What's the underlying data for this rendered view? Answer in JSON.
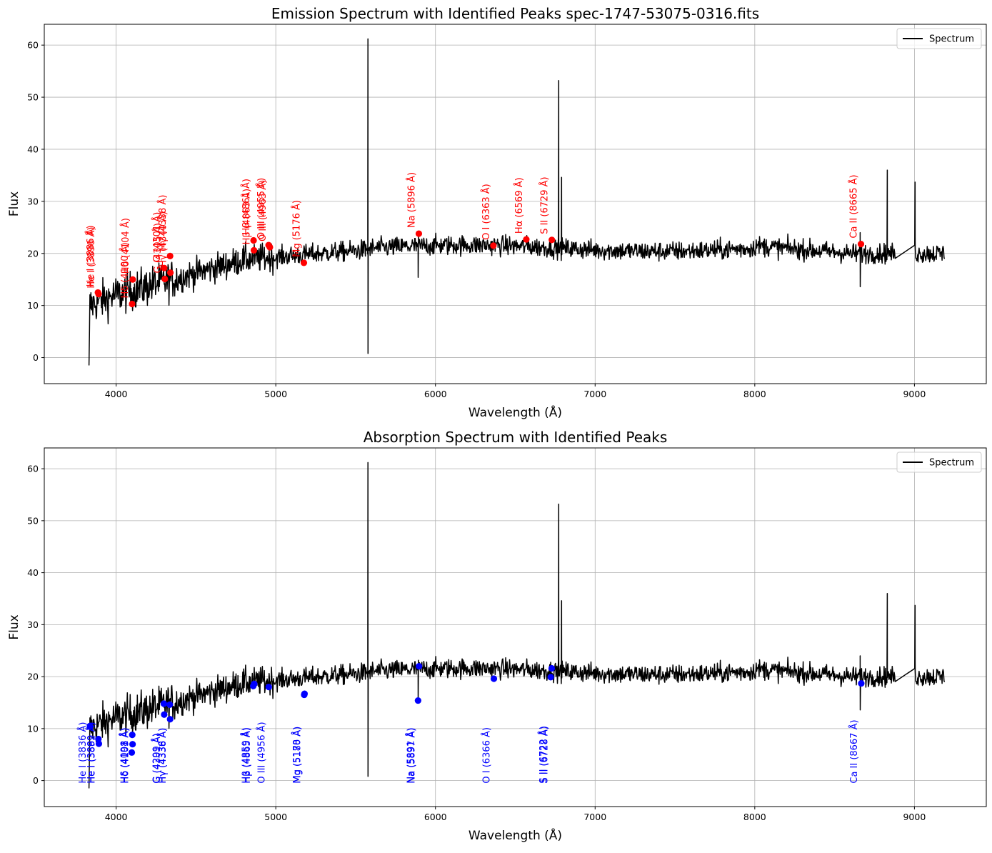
{
  "chart_data": [
    {
      "type": "line",
      "title": "Emission Spectrum with Identified Peaks spec-1747-53075-0316.fits",
      "xlabel": "Wavelength (Å)",
      "ylabel": "Flux",
      "xlim": [
        3550,
        9450
      ],
      "ylim": [
        -5,
        64
      ],
      "xticks": [
        4000,
        5000,
        6000,
        7000,
        8000,
        9000
      ],
      "yticks": [
        0,
        10,
        20,
        30,
        40,
        50,
        60
      ],
      "grid": true,
      "legend": {
        "position": "top-right",
        "entries": [
          "Spectrum"
        ]
      },
      "series_color": "#000000",
      "marker_color": "#ff0000",
      "markers": [
        {
          "x": 3886,
          "y": 12.5,
          "label": "He I (3886 Å)"
        },
        {
          "x": 3890,
          "y": 12.2,
          "label": "He I (3890 Å)"
        },
        {
          "x": 4100,
          "y": 10.3,
          "label": "Hδ (4100 Å)"
        },
        {
          "x": 4104,
          "y": 15.0,
          "label": "Hδ (4104 Å)"
        },
        {
          "x": 4301,
          "y": 17.2,
          "label": "G (4301 Å)"
        },
        {
          "x": 4305,
          "y": 15.1,
          "label": "G (4305 Å)"
        },
        {
          "x": 4338,
          "y": 19.5,
          "label": "Hγ (4338 Å)"
        },
        {
          "x": 4340,
          "y": 16.3,
          "label": "Hγ (4340 Å)"
        },
        {
          "x": 4861,
          "y": 22.5,
          "label": "Hβ (4861 Å)"
        },
        {
          "x": 4863,
          "y": 20.6,
          "label": "Hβ (4863 Å)"
        },
        {
          "x": 4955,
          "y": 21.6,
          "label": "O III (4955 Å)"
        },
        {
          "x": 4963,
          "y": 21.2,
          "label": "O III (4963 Å)"
        },
        {
          "x": 5176,
          "y": 18.2,
          "label": "Mg (5176 Å)"
        },
        {
          "x": 5896,
          "y": 23.8,
          "label": "Na (5896 Å)"
        },
        {
          "x": 6363,
          "y": 21.5,
          "label": "O I (6363 Å)"
        },
        {
          "x": 6569,
          "y": 22.7,
          "label": "Hα (6569 Å)"
        },
        {
          "x": 6729,
          "y": 22.6,
          "label": "S II (6729 Å)"
        },
        {
          "x": 8665,
          "y": 21.8,
          "label": "Ca II (8665 Å)"
        }
      ]
    },
    {
      "type": "line",
      "title": "Absorption Spectrum with Identified Peaks",
      "xlabel": "Wavelength (Å)",
      "ylabel": "Flux",
      "xlim": [
        3550,
        9450
      ],
      "ylim": [
        -5,
        64
      ],
      "xticks": [
        4000,
        5000,
        6000,
        7000,
        8000,
        9000
      ],
      "yticks": [
        0,
        10,
        20,
        30,
        40,
        50,
        60
      ],
      "grid": true,
      "legend": {
        "position": "top-right",
        "entries": [
          "Spectrum"
        ]
      },
      "series_color": "#000000",
      "marker_color": "#0000ff",
      "markers": [
        {
          "x": 3836,
          "y": 10.5,
          "label": "He I (3836 Å)"
        },
        {
          "x": 3889,
          "y": 8.0,
          "label": "He I (3889 Å)"
        },
        {
          "x": 3892,
          "y": 7.1,
          "label": "He I (3892 Å)"
        },
        {
          "x": 4098,
          "y": 5.4,
          "label": "Hδ (4098 Å)"
        },
        {
          "x": 4101,
          "y": 8.8,
          "label": "Hδ (4101 Å)"
        },
        {
          "x": 4103,
          "y": 7.0,
          "label": "Hδ (4103 Å)"
        },
        {
          "x": 4299,
          "y": 14.8,
          "label": "G (4299 Å)"
        },
        {
          "x": 4301,
          "y": 12.7,
          "label": "G (4301 Å)"
        },
        {
          "x": 4336,
          "y": 14.6,
          "label": "Hγ (4336 Å)"
        },
        {
          "x": 4338,
          "y": 11.8,
          "label": "Hγ (4338 Å)"
        },
        {
          "x": 4859,
          "y": 18.2,
          "label": "Hβ (4859 Å)"
        },
        {
          "x": 4865,
          "y": 18.6,
          "label": "Hβ (4865 Å)"
        },
        {
          "x": 4956,
          "y": 18.0,
          "label": "O III (4956 Å)"
        },
        {
          "x": 5178,
          "y": 16.5,
          "label": "Mg (5178 Å)"
        },
        {
          "x": 5180,
          "y": 16.7,
          "label": "Mg (5180 Å)"
        },
        {
          "x": 5891,
          "y": 15.4,
          "label": "Na (5891 Å)"
        },
        {
          "x": 5897,
          "y": 22.0,
          "label": "Na (5897 Å)"
        },
        {
          "x": 6366,
          "y": 19.6,
          "label": "O I (6366 Å)"
        },
        {
          "x": 6722,
          "y": 19.9,
          "label": "S II (6722 Å)"
        },
        {
          "x": 6728,
          "y": 21.6,
          "label": "S II (6728 Å)"
        },
        {
          "x": 8667,
          "y": 18.7,
          "label": "Ca II (8667 Å)"
        }
      ]
    }
  ]
}
